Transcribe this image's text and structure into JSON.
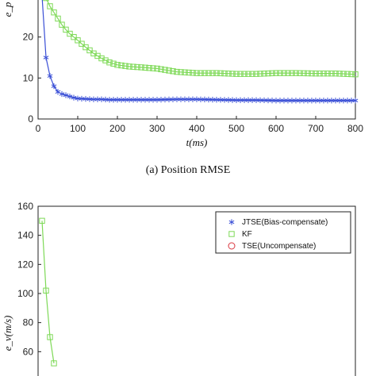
{
  "chart_data": [
    {
      "type": "line",
      "title": "",
      "caption": "(a) Position RMSE",
      "xlabel": "t(ms)",
      "ylabel": "e_p",
      "xlim": [
        0,
        800
      ],
      "ylim": [
        0,
        30
      ],
      "xticks": [
        0,
        100,
        200,
        300,
        400,
        500,
        600,
        700,
        800
      ],
      "yticks": [
        0,
        10,
        20
      ],
      "grid": false,
      "series": [
        {
          "color": "#3a4fd6",
          "marker": "asterisk",
          "x": [
            10,
            20,
            30,
            40,
            50,
            60,
            70,
            80,
            90,
            100,
            120,
            140,
            160,
            180,
            200,
            250,
            300,
            350,
            400,
            450,
            500,
            550,
            600,
            650,
            700,
            750,
            800
          ],
          "y": [
            30,
            15,
            10.5,
            8,
            6.6,
            6.1,
            5.8,
            5.5,
            5.2,
            5.0,
            4.9,
            4.8,
            4.8,
            4.7,
            4.7,
            4.7,
            4.7,
            4.8,
            4.8,
            4.7,
            4.6,
            4.6,
            4.5,
            4.5,
            4.5,
            4.5,
            4.5
          ]
        },
        {
          "color": "#7ed957",
          "marker": "square",
          "x": [
            20,
            30,
            40,
            50,
            60,
            70,
            80,
            90,
            100,
            120,
            140,
            160,
            180,
            200,
            230,
            260,
            300,
            350,
            400,
            450,
            500,
            550,
            600,
            650,
            700,
            750,
            800
          ],
          "y": [
            29.5,
            27.5,
            26,
            24.5,
            23,
            21.8,
            20.8,
            20,
            19.2,
            17.5,
            16,
            14.8,
            13.8,
            13.2,
            12.8,
            12.6,
            12.3,
            11.5,
            11.2,
            11.2,
            11.0,
            11.0,
            11.2,
            11.2,
            11.1,
            11.1,
            10.9
          ]
        }
      ]
    },
    {
      "type": "line",
      "title": "",
      "xlabel": "",
      "ylabel": "e_v(m/s)",
      "xlim": [
        0,
        800
      ],
      "ylim": [
        40,
        160
      ],
      "yticks": [
        60,
        80,
        100,
        120,
        140,
        160
      ],
      "grid": false,
      "legend_position": "top-right",
      "series": [
        {
          "name": "JTSE(Bias-compensate)",
          "color": "#3a4fd6",
          "marker": "asterisk",
          "x": [],
          "y": []
        },
        {
          "name": "KF",
          "color": "#7ed957",
          "marker": "square",
          "x": [
            10,
            20,
            30,
            40
          ],
          "y": [
            150,
            102,
            70,
            52
          ]
        },
        {
          "name": "TSE(Uncompensate)",
          "color": "#d9363e",
          "marker": "circle",
          "x": [],
          "y": []
        }
      ]
    }
  ]
}
